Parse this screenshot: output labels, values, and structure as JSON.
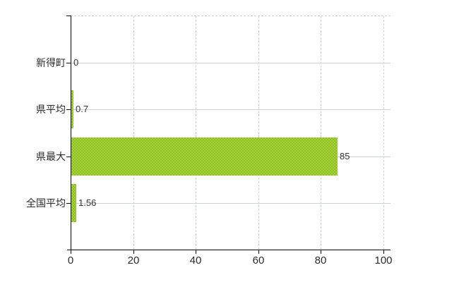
{
  "chart_data": {
    "type": "bar",
    "orientation": "horizontal",
    "title": "",
    "xlabel": "",
    "ylabel": "",
    "categories": [
      "新得町",
      "県平均",
      "県最大",
      "全国平均"
    ],
    "values": [
      0,
      0.7,
      85,
      1.56
    ],
    "value_labels": [
      "0",
      "0.7",
      "85",
      "1.56"
    ],
    "xlim": [
      0,
      100
    ],
    "x_ticks": [
      0,
      20,
      40,
      60,
      80,
      100
    ],
    "x_tick_labels": [
      "0",
      "20",
      "40",
      "60",
      "80",
      "100"
    ],
    "grid": true,
    "legend": "none",
    "colors": {
      "bar_light": "#aed13b",
      "bar_dark": "#86c122",
      "grid_horizontal": "#ccd5cc",
      "grid_vertical_dashed": "#d5ccd5",
      "axis": "#000000",
      "text": "#2b2b2b",
      "background": "#ffffff"
    }
  }
}
